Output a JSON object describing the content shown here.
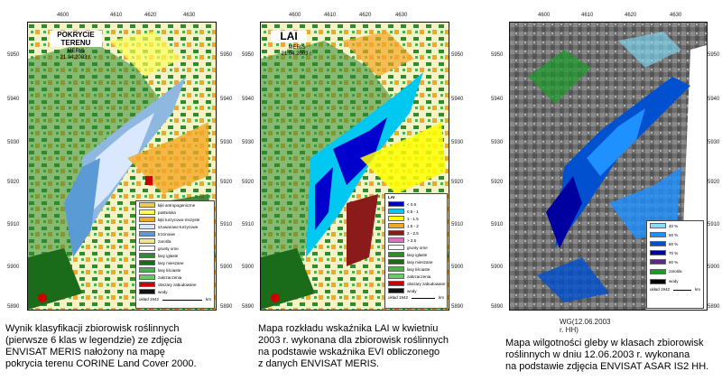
{
  "panel1": {
    "title": "POKRYCIE TERENU",
    "sensor": "MERIS",
    "date": "21.04.2003 r.",
    "x_ticks": [
      "4600",
      "4610",
      "4620",
      "4630"
    ],
    "y_ticks": [
      "5950",
      "5940",
      "5930",
      "5920",
      "5910",
      "5900",
      "5890"
    ],
    "legend": [
      {
        "label": "łąki antropogeniczne",
        "color": "#f7c948"
      },
      {
        "label": "pastwiska",
        "color": "#ffff55"
      },
      {
        "label": "łąki turzycowo-mszyste",
        "color": "#f5a623"
      },
      {
        "label": "szuwarowo-turzycowe",
        "color": "#d9e8ff"
      },
      {
        "label": "trzcinowe",
        "color": "#5b9bd5"
      },
      {
        "label": "zarośla",
        "color": "#f0e68c"
      },
      {
        "label": "grunty orne",
        "color": "#ffffff"
      },
      {
        "label": "lasy iglaste",
        "color": "#2e8b2e"
      },
      {
        "label": "lasy mieszane",
        "color": "#1a6b1a"
      },
      {
        "label": "lasy liściaste",
        "color": "#4caf50"
      },
      {
        "label": "zakrzaczenia",
        "color": "#66cc66"
      },
      {
        "label": "obszary zabudowane",
        "color": "#cc0000"
      },
      {
        "label": "wody",
        "color": "#111111"
      }
    ],
    "scale_label": "układ 1942",
    "scale_unit": "km",
    "caption": [
      "Wynik klasyfikacji zbiorowisk roślinnych",
      "(pierwsze 6 klas w legendzie) ze zdjęcia",
      "ENVISAT MERIS nałożony na mapę",
      "pokrycia terenu CORINE Land Cover 2000."
    ]
  },
  "panel2": {
    "title": "LAI",
    "sensor": "MERIS",
    "date": "21.04.2003 r.",
    "x_ticks": [
      "4600",
      "4610",
      "4620",
      "4630"
    ],
    "y_ticks": [
      "5950",
      "5940",
      "5930",
      "5920",
      "5910",
      "5900",
      "5890"
    ],
    "legend_title": "LAI",
    "legend": [
      {
        "label": "< 0.5",
        "color": "#0000cc"
      },
      {
        "label": "0.5 - 1",
        "color": "#00c8f0"
      },
      {
        "label": "1 - 1.5",
        "color": "#ffff00"
      },
      {
        "label": "1.5 - 2",
        "color": "#f5a623"
      },
      {
        "label": "2 - 2.5",
        "color": "#8b1a1a"
      },
      {
        "label": "> 2.5",
        "color": "#e070c0"
      },
      {
        "label": "grunty orne",
        "color": "#ffffff"
      },
      {
        "label": "lasy iglaste",
        "color": "#2e8b2e"
      },
      {
        "label": "lasy mieszane",
        "color": "#1a6b1a"
      },
      {
        "label": "lasy liściaste",
        "color": "#4caf50"
      },
      {
        "label": "zakrzaczenia",
        "color": "#66cc66"
      },
      {
        "label": "obszary zabudowane",
        "color": "#cc0000"
      },
      {
        "label": "wody",
        "color": "#111111"
      }
    ],
    "scale_label": "układ 1942",
    "scale_unit": "km",
    "caption": [
      "Mapa rozkładu wskaźnika LAI w kwietniu",
      "2003 r. wykonana dla zbiorowisk roślinnych",
      "na podstawie wskaźnika EVI obliczonego",
      "z danych ENVISAT MERIS."
    ]
  },
  "panel3": {
    "x_ticks": [
      "4600",
      "4610",
      "4620",
      "4630"
    ],
    "y_ticks": [
      "5950",
      "5940",
      "5930",
      "5920",
      "5910",
      "5900",
      "5890"
    ],
    "legend": [
      {
        "label": "40 %",
        "color": "#7fe0ff"
      },
      {
        "label": "50 %",
        "color": "#1e90ff"
      },
      {
        "label": "60 %",
        "color": "#0050d0"
      },
      {
        "label": "70 %",
        "color": "#0000a0"
      },
      {
        "label": "80 %",
        "color": "#5a2a8a"
      }
    ],
    "extra_legend": [
      {
        "label": "zarośla",
        "color": "#1a9b2a"
      },
      {
        "label": "wody",
        "color": "#000000"
      }
    ],
    "scale_label": "układ 1942",
    "scale_unit": "km",
    "x_axis_label": "WG(12.06.2003 r. HH)",
    "caption": [
      "Mapa wilgotności gleby w klasach zbiorowisk",
      "roślinnych w dniu 12.06.2003 r. wykonana",
      "na podstawie zdjęcia ENVISAT ASAR IS2 HH."
    ]
  }
}
